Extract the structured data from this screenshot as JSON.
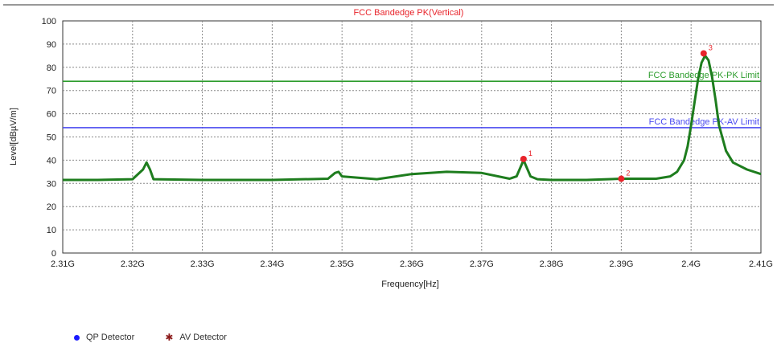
{
  "chart_data": {
    "type": "line",
    "title": "FCC Bandedge PK(Vertical)",
    "xlabel": "Frequency[Hz]",
    "ylabel": "Level[dBµV/m]",
    "xlim": [
      2.31,
      2.41
    ],
    "ylim": [
      0,
      100
    ],
    "x_tick_labels": [
      "2.31G",
      "2.32G",
      "2.33G",
      "2.34G",
      "2.35G",
      "2.36G",
      "2.37G",
      "2.38G",
      "2.39G",
      "2.4G",
      "2.41G"
    ],
    "y_tick_labels": [
      "0",
      "10",
      "20",
      "30",
      "40",
      "50",
      "60",
      "70",
      "80",
      "90",
      "100"
    ],
    "grid": true,
    "series": [
      {
        "name": "",
        "color": "#1e7d1e",
        "x": [
          2.31,
          2.315,
          2.32,
          2.3215,
          2.322,
          2.3225,
          2.323,
          2.33,
          2.34,
          2.348,
          2.349,
          2.3495,
          2.35,
          2.355,
          2.36,
          2.365,
          2.37,
          2.374,
          2.375,
          2.376,
          2.377,
          2.378,
          2.38,
          2.385,
          2.39,
          2.395,
          2.397,
          2.398,
          2.399,
          2.3995,
          2.4,
          2.4005,
          2.401,
          2.4015,
          2.402,
          2.4025,
          2.403,
          2.4035,
          2.404,
          2.405,
          2.406,
          2.408,
          2.41
        ],
        "y": [
          31.5,
          31.5,
          31.8,
          36,
          39,
          36,
          31.8,
          31.5,
          31.5,
          32,
          34.5,
          35,
          33,
          31.8,
          34,
          35,
          34.5,
          32,
          33,
          40,
          33,
          31.8,
          31.5,
          31.5,
          32,
          32,
          33,
          35,
          40,
          46,
          55,
          65,
          75,
          82,
          85,
          83,
          76,
          66,
          55,
          44,
          39,
          36,
          34
        ]
      }
    ],
    "limit_lines": [
      {
        "name": "FCC Bandedge PK-PK Limit",
        "value": 74,
        "color": "#2c9c2c"
      },
      {
        "name": "FCC Bandedge PK-AV Limit",
        "value": 54,
        "color": "#4a4af0"
      }
    ],
    "markers": [
      {
        "label": "1",
        "x": 2.376,
        "y": 40.5
      },
      {
        "label": "2",
        "x": 2.39,
        "y": 32.0
      },
      {
        "label": "3",
        "x": 2.4018,
        "y": 86.0
      }
    ],
    "legend": [
      {
        "label": "QP Detector",
        "color": "#1a1aff"
      },
      {
        "label": "AV Detector",
        "color": "#8b1a1a"
      }
    ]
  }
}
